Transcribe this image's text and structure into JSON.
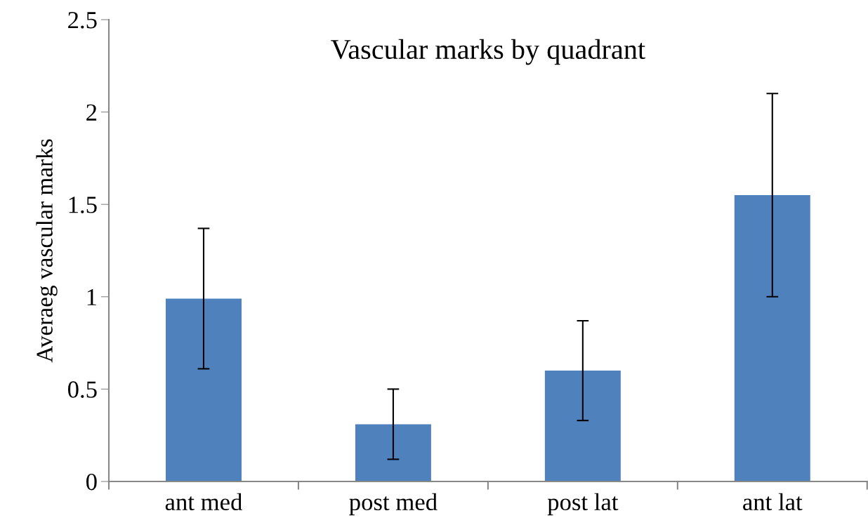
{
  "chart_data": {
    "type": "bar",
    "title": "Vascular marks by quadrant",
    "ylabel": "Averaeg vascular marks",
    "categories": [
      "ant med",
      "post med",
      "post lat",
      "ant lat"
    ],
    "values": [
      0.99,
      0.31,
      0.6,
      1.55
    ],
    "errors": [
      0.38,
      0.19,
      0.27,
      0.55
    ],
    "color": "#4f81bd",
    "ylim": [
      0,
      2.5
    ],
    "yticks": [
      0,
      0.5,
      1,
      1.5,
      2,
      2.5
    ],
    "grid": false,
    "legend": false
  }
}
